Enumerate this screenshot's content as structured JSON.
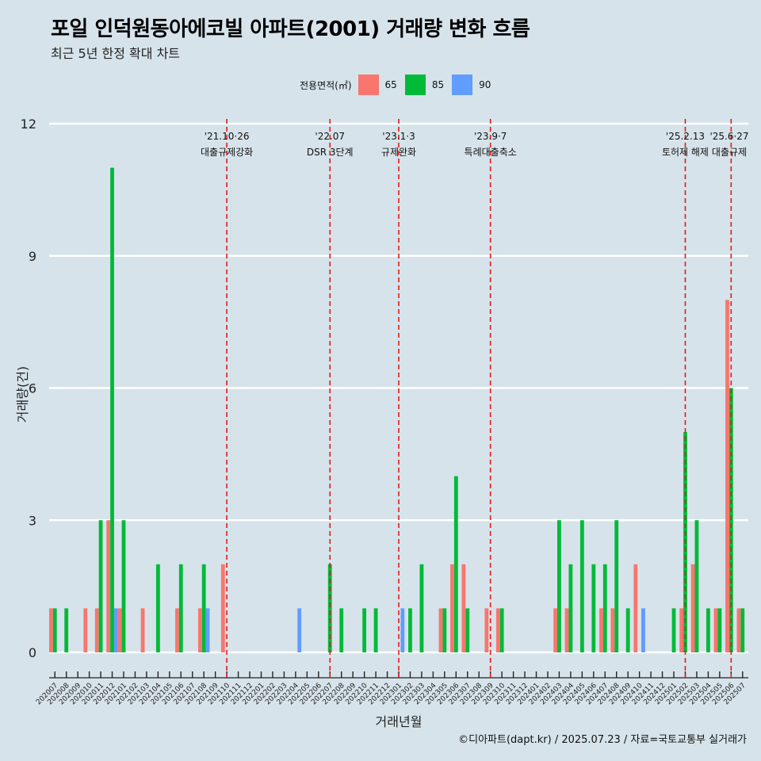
{
  "title": "포일 인덕원동아에코빌 아파트(2001) 거래량 변화 흐름",
  "subtitle": "최근 5년 한정 확대 차트",
  "caption": "©디아파트(dapt.kr) / 2025.07.23 / 자료=국토교통부 실거래가",
  "legend": {
    "title": "전용면적(㎡)",
    "items": [
      {
        "label": "65",
        "color": "#F8766D"
      },
      {
        "label": "85",
        "color": "#00BA38"
      },
      {
        "label": "90",
        "color": "#619CFF"
      }
    ]
  },
  "chart_data": {
    "type": "bar",
    "xlabel": "거래년월",
    "ylabel": "거래량(건)",
    "ylim": [
      0,
      12
    ],
    "yticks": [
      0,
      3,
      6,
      9,
      12
    ],
    "grid": true,
    "legend_position": "top",
    "categories": [
      "202007",
      "202008",
      "202009",
      "202010",
      "202011",
      "202012",
      "202101",
      "202102",
      "202103",
      "202104",
      "202105",
      "202106",
      "202107",
      "202108",
      "202109",
      "202110",
      "202111",
      "202112",
      "202201",
      "202202",
      "202203",
      "202204",
      "202205",
      "202206",
      "202207",
      "202208",
      "202209",
      "202210",
      "202211",
      "202212",
      "202301",
      "202302",
      "202303",
      "202304",
      "202305",
      "202306",
      "202307",
      "202308",
      "202309",
      "202310",
      "202311",
      "202312",
      "202401",
      "202402",
      "202403",
      "202404",
      "202405",
      "202406",
      "202407",
      "202408",
      "202409",
      "202410",
      "202411",
      "202412",
      "202501",
      "202502",
      "202503",
      "202504",
      "202505",
      "202506",
      "202507"
    ],
    "series": [
      {
        "name": "65",
        "values": [
          1,
          0,
          0,
          1,
          1,
          3,
          1,
          0,
          1,
          0,
          0,
          1,
          0,
          1,
          0,
          2,
          0,
          0,
          0,
          0,
          0,
          0,
          0,
          0,
          0,
          0,
          0,
          0,
          0,
          0,
          0,
          0,
          0,
          0,
          1,
          2,
          2,
          0,
          1,
          1,
          0,
          0,
          0,
          0,
          1,
          1,
          0,
          0,
          1,
          1,
          0,
          2,
          0,
          0,
          0,
          1,
          2,
          0,
          1,
          8,
          1
        ]
      },
      {
        "name": "85",
        "values": [
          1,
          1,
          0,
          0,
          3,
          11,
          3,
          0,
          0,
          2,
          0,
          2,
          0,
          2,
          0,
          0,
          0,
          0,
          0,
          0,
          0,
          0,
          0,
          0,
          2,
          1,
          0,
          1,
          1,
          0,
          0,
          1,
          2,
          0,
          1,
          4,
          1,
          0,
          0,
          1,
          0,
          0,
          0,
          0,
          3,
          2,
          3,
          2,
          2,
          3,
          1,
          0,
          0,
          0,
          1,
          5,
          3,
          1,
          1,
          6,
          1
        ]
      },
      {
        "name": "90",
        "values": [
          0,
          0,
          0,
          0,
          0,
          1,
          0,
          0,
          0,
          0,
          0,
          0,
          0,
          1,
          0,
          0,
          0,
          0,
          0,
          0,
          0,
          1,
          0,
          0,
          0,
          0,
          0,
          0,
          0,
          0,
          1,
          0,
          0,
          0,
          0,
          0,
          0,
          0,
          0,
          0,
          0,
          0,
          0,
          0,
          0,
          0,
          0,
          0,
          0,
          0,
          0,
          1,
          0,
          0,
          0,
          0,
          0,
          0,
          0,
          0,
          0
        ]
      }
    ],
    "annotations": [
      {
        "x": "202110",
        "date": "'21.10·26",
        "label": "대출규제강화"
      },
      {
        "x": "202207",
        "date": "'22.07",
        "label": "DSR 3단계"
      },
      {
        "x": "202301",
        "date": "'23.1·3",
        "label": "규제완화"
      },
      {
        "x": "202309",
        "date": "'23.9·7",
        "label": "특례대출축소"
      },
      {
        "x": "202502",
        "date": "'25.2.13",
        "label": "토허제 해제"
      },
      {
        "x": "202506",
        "date": "'25.6·27",
        "label": "대출규제"
      }
    ]
  }
}
